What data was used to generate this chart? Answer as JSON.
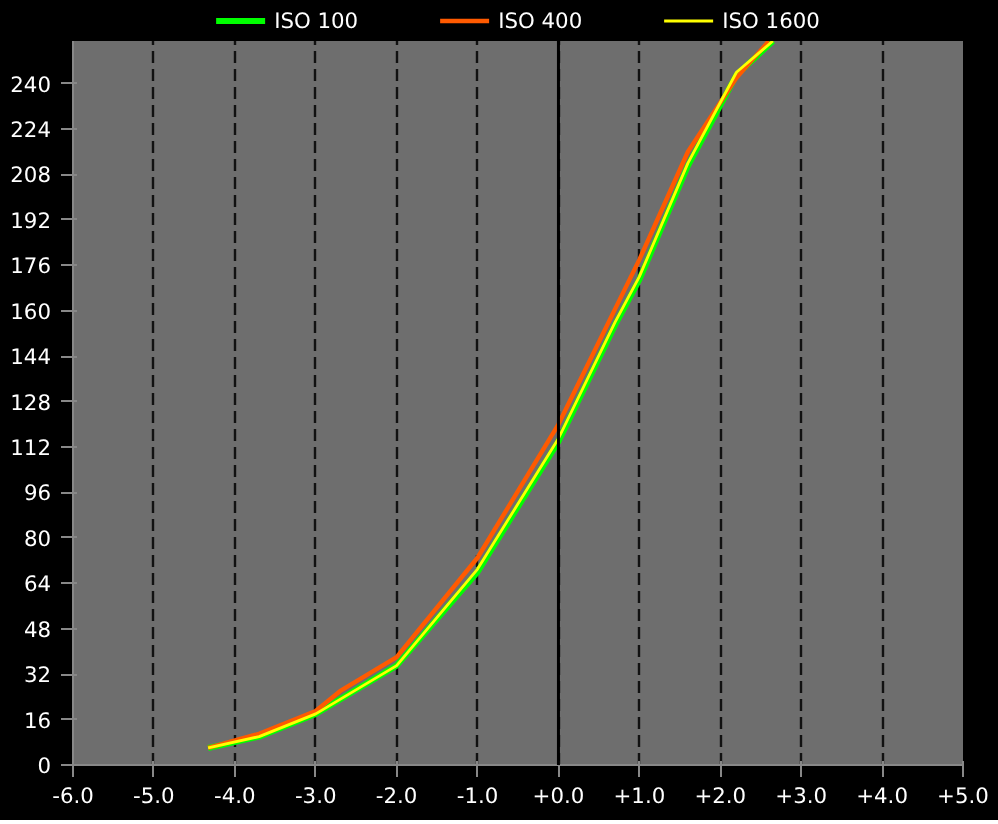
{
  "chart_data": {
    "type": "line",
    "xlim": [
      -6,
      5
    ],
    "ylim": [
      0,
      255
    ],
    "xticks": [
      {
        "value": -6,
        "label": "-6.0"
      },
      {
        "value": -5,
        "label": "-5.0"
      },
      {
        "value": -4,
        "label": "-4.0"
      },
      {
        "value": -3,
        "label": "-3.0"
      },
      {
        "value": -2,
        "label": "-2.0"
      },
      {
        "value": -1,
        "label": "-1.0"
      },
      {
        "value": 0,
        "label": "+0.0"
      },
      {
        "value": 1,
        "label": "+1.0"
      },
      {
        "value": 2,
        "label": "+2.0"
      },
      {
        "value": 3,
        "label": "+3.0"
      },
      {
        "value": 4,
        "label": "+4.0"
      },
      {
        "value": 5,
        "label": "+5.0"
      }
    ],
    "yticks": [
      0,
      16,
      32,
      48,
      64,
      80,
      96,
      112,
      128,
      144,
      160,
      176,
      192,
      208,
      224,
      240
    ],
    "grid": "x",
    "legend": "top",
    "ref_lines": [
      {
        "axis": "x",
        "value": 0,
        "color": "#000000"
      }
    ],
    "series": [
      {
        "name": "ISO 100",
        "color": "#00ff00",
        "x": [
          -4.33,
          -3.7,
          -3.0,
          -2.0,
          -1.0,
          0,
          0.7,
          1.0,
          1.6,
          2.2,
          2.65
        ],
        "values": [
          6,
          10,
          18,
          35,
          68,
          114,
          155,
          171,
          211,
          243,
          255
        ]
      },
      {
        "name": "ISO 400",
        "color": "#ff5a00",
        "x": [
          -4.33,
          -3.7,
          -3.0,
          -2.7,
          -2.0,
          -1.0,
          0,
          1.0,
          1.6,
          2.2,
          2.6
        ],
        "values": [
          6,
          11,
          19,
          26,
          38,
          73,
          120,
          178,
          216,
          242,
          255
        ]
      },
      {
        "name": "ISO 1600",
        "color": "#ffff00",
        "x": [
          -4.33,
          -3.7,
          -3.0,
          -2.0,
          -1.0,
          0,
          0.7,
          1.0,
          1.6,
          2.2,
          2.65
        ],
        "values": [
          6,
          10,
          18,
          35,
          69,
          115,
          156,
          172,
          212,
          244,
          255
        ]
      }
    ]
  }
}
